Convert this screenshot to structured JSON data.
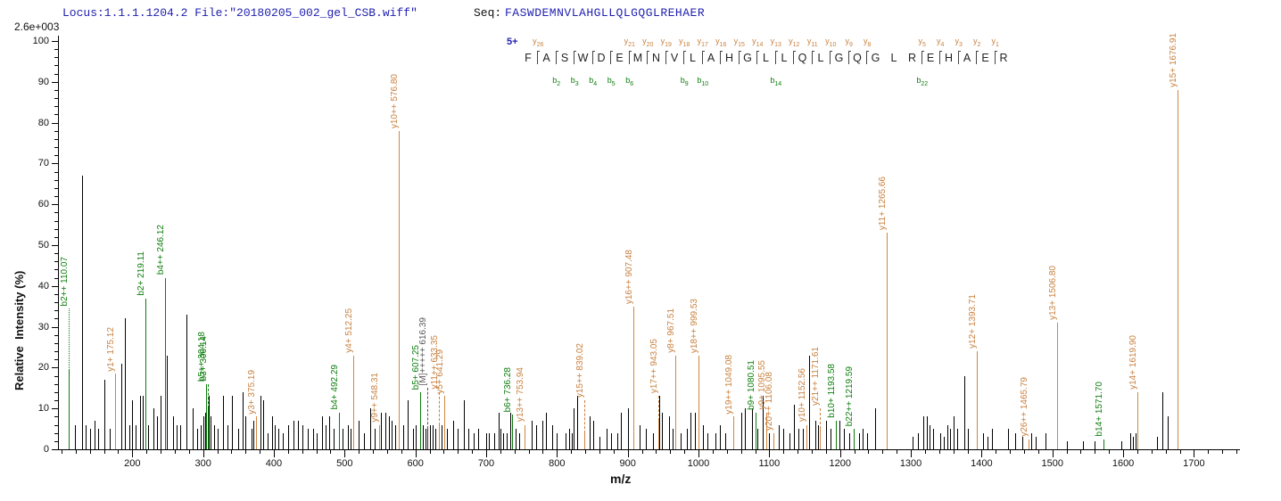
{
  "header": {
    "locus_file": "Locus:1.1.1.1204.2 File:\"20180205_002_gel_CSB.wiff\"",
    "seq_label": "Seq:",
    "sequence": "FASWDEMNVLAHGLLQLGQGLREHAER"
  },
  "axis_top_label": "2.6e+003",
  "colors": {
    "y_ion": "#c8803f",
    "y_ion_bar": "#d0863f",
    "b_ion": "#0d7d0d",
    "b_ion_bar": "#0d7d0d",
    "precursor": "#555555",
    "precursor_bar": "#333333",
    "peak_black": "#000000",
    "header_blue": "#2121b2",
    "charge_blue": "#2121b2"
  },
  "chart_data": {
    "type": "bar",
    "subtype": "ms2-centroid-spectrum",
    "title": "",
    "xlabel": "m/z",
    "ylabel": "Relative  Intensity (%)",
    "xlim": [
      95,
      1765
    ],
    "ylim": [
      0,
      100
    ],
    "x_major_tick_step": 100,
    "x_minor_tick_step": 20,
    "x_major_ticks": [
      200,
      300,
      400,
      500,
      600,
      700,
      800,
      900,
      1000,
      1100,
      1200,
      1300,
      1400,
      1500,
      1600,
      1700
    ],
    "y_major_tick_step": 10,
    "y_minor_tick_step": 2,
    "y_major_ticks": [
      0,
      10,
      20,
      30,
      40,
      50,
      60,
      70,
      80,
      90,
      100
    ],
    "grid": false,
    "max_intensity_counts": "2.6e+003",
    "precursor": {
      "charge": "5+",
      "label": "[M]+++++ 616.39"
    },
    "sequence": "FASWDEMNVLAHGLLQLGQGLREHAER",
    "ladder": {
      "y_ions": [
        {
          "after": 1,
          "n": 26
        },
        {
          "after": 6,
          "n": 21
        },
        {
          "after": 7,
          "n": 20
        },
        {
          "after": 8,
          "n": 19
        },
        {
          "after": 9,
          "n": 18
        },
        {
          "after": 10,
          "n": 17
        },
        {
          "after": 11,
          "n": 16
        },
        {
          "after": 12,
          "n": 15
        },
        {
          "after": 13,
          "n": 14
        },
        {
          "after": 14,
          "n": 13
        },
        {
          "after": 15,
          "n": 12
        },
        {
          "after": 16,
          "n": 11
        },
        {
          "after": 17,
          "n": 10
        },
        {
          "after": 18,
          "n": 9
        },
        {
          "after": 19,
          "n": 8
        },
        {
          "after": 22,
          "n": 5
        },
        {
          "after": 23,
          "n": 4
        },
        {
          "after": 24,
          "n": 3
        },
        {
          "after": 25,
          "n": 2
        },
        {
          "after": 26,
          "n": 1
        }
      ],
      "b_ions": [
        {
          "after": 2,
          "n": 2
        },
        {
          "after": 3,
          "n": 3
        },
        {
          "after": 4,
          "n": 4
        },
        {
          "after": 5,
          "n": 5
        },
        {
          "after": 6,
          "n": 6
        },
        {
          "after": 9,
          "n": 9
        },
        {
          "after": 10,
          "n": 10
        },
        {
          "after": 14,
          "n": 14
        },
        {
          "after": 22,
          "n": 22
        }
      ]
    },
    "annotated_peaks": [
      {
        "mz": 110.07,
        "pct": 19.5,
        "ion": "b",
        "label": "b2++ 110.07",
        "raise": 15,
        "dash": "dotted"
      },
      {
        "mz": 175.12,
        "pct": 18.5,
        "ion": "y",
        "label": "y1+ 175.12"
      },
      {
        "mz": 219.11,
        "pct": 37,
        "ion": "b",
        "label": "b2+ 219.11"
      },
      {
        "mz": 246.12,
        "pct": 42,
        "ion": "b",
        "label": "b4++ 246.12"
      },
      {
        "mz": 304.18,
        "pct": 16,
        "ion": "b",
        "label": "b5++ 304.18"
      },
      {
        "mz": 306.14,
        "pct": 10,
        "ion": "b",
        "label": "b3+ 306.14",
        "raise": 6
      },
      {
        "mz": 375.19,
        "pct": 8,
        "ion": "y",
        "label": "y3+ 375.19"
      },
      {
        "mz": 492.29,
        "pct": 9,
        "ion": "b",
        "label": "b4+ 492.29"
      },
      {
        "mz": 512.25,
        "pct": 23,
        "ion": "y",
        "label": "y4+ 512.25"
      },
      {
        "mz": 548.31,
        "pct": 6,
        "ion": "y",
        "label": "y9++ 548.31"
      },
      {
        "mz": 576.8,
        "pct": 78,
        "ion": "y",
        "label": "y10++ 576.80"
      },
      {
        "mz": 607.25,
        "pct": 14,
        "ion": "b",
        "label": "b5+ 607.25"
      },
      {
        "mz": 616.39,
        "pct": 5,
        "ion": "M",
        "label": "[M]+++++ 616.39",
        "raise": 10,
        "dash": "dashed"
      },
      {
        "mz": 633.35,
        "pct": 6,
        "ion": "y",
        "label": "y11++ 633.35",
        "raise": 8,
        "dash": "dashed"
      },
      {
        "mz": 641.29,
        "pct": 13,
        "ion": "y",
        "label": "y5+ 641.29"
      },
      {
        "mz": 736.28,
        "pct": 8.5,
        "ion": "b",
        "label": "b6+ 736.28"
      },
      {
        "mz": 753.94,
        "pct": 6,
        "ion": "y",
        "label": "y13++ 753.94"
      },
      {
        "mz": 839.02,
        "pct": 4,
        "ion": "y",
        "label": "y15++ 839.02",
        "raise": 8,
        "dash": "dashed"
      },
      {
        "mz": 907.48,
        "pct": 35,
        "ion": "y",
        "label": "y16++ 907.48"
      },
      {
        "mz": 943.05,
        "pct": 7,
        "ion": "y",
        "label": "y17++ 943.05",
        "raise": 6,
        "dash": "dashed"
      },
      {
        "mz": 967.51,
        "pct": 23,
        "ion": "y",
        "label": "y8+ 967.51"
      },
      {
        "mz": 999.53,
        "pct": 23,
        "ion": "y",
        "label": "y18++ 999.53"
      },
      {
        "mz": 1049.08,
        "pct": 8,
        "ion": "y",
        "label": "y19++ 1049.08"
      },
      {
        "mz": 1080.51,
        "pct": 9,
        "ion": "b",
        "label": "b9+ 1080.51"
      },
      {
        "mz": 1095.55,
        "pct": 9,
        "ion": "y",
        "label": "y9+ 1095.55"
      },
      {
        "mz": 1106.08,
        "pct": 4,
        "ion": "y",
        "label": "y20++ 1106.08"
      },
      {
        "mz": 1152.56,
        "pct": 6,
        "ion": "y",
        "label": "y10+ 1152.56"
      },
      {
        "mz": 1171.61,
        "pct": 5,
        "ion": "y",
        "label": "y21++ 1171.61",
        "raise": 5,
        "dash": "dashed"
      },
      {
        "mz": 1193.58,
        "pct": 7,
        "ion": "b",
        "label": "b10+ 1193.58"
      },
      {
        "mz": 1219.59,
        "pct": 5,
        "ion": "b",
        "label": "b22++ 1219.59"
      },
      {
        "mz": 1265.66,
        "pct": 53,
        "ion": "y",
        "label": "y11+ 1265.66"
      },
      {
        "mz": 1393.71,
        "pct": 24,
        "ion": "y",
        "label": "y12+ 1393.71"
      },
      {
        "mz": 1465.79,
        "pct": 2.5,
        "ion": "y",
        "label": "y26++ 1465.79"
      },
      {
        "mz": 1506.8,
        "pct": 31,
        "ion": "y",
        "label": "y13+ 1506.80"
      },
      {
        "mz": 1571.7,
        "pct": 2.5,
        "ion": "b",
        "label": "b14+ 1571.70"
      },
      {
        "mz": 1619.9,
        "pct": 14,
        "ion": "y",
        "label": "y14+ 1619.90"
      },
      {
        "mz": 1676.91,
        "pct": 88,
        "ion": "y",
        "label": "y15+ 1676.91"
      }
    ],
    "unlabeled_peaks": [
      [
        119,
        6
      ],
      [
        129,
        67
      ],
      [
        134,
        6
      ],
      [
        141,
        5
      ],
      [
        147,
        7
      ],
      [
        152,
        5
      ],
      [
        161,
        17
      ],
      [
        168,
        5
      ],
      [
        185,
        21
      ],
      [
        190,
        32
      ],
      [
        196,
        6
      ],
      [
        199,
        12
      ],
      [
        205,
        6
      ],
      [
        211,
        13
      ],
      [
        215,
        13
      ],
      [
        222,
        6
      ],
      [
        230,
        10
      ],
      [
        235,
        8
      ],
      [
        240,
        13
      ],
      [
        249,
        23
      ],
      [
        258,
        8
      ],
      [
        262,
        6
      ],
      [
        268,
        6
      ],
      [
        277,
        33
      ],
      [
        285,
        10
      ],
      [
        291,
        5
      ],
      [
        297,
        6
      ],
      [
        300,
        8
      ],
      [
        303,
        9
      ],
      [
        308,
        13
      ],
      [
        311,
        8
      ],
      [
        316,
        6
      ],
      [
        321,
        5
      ],
      [
        328,
        13
      ],
      [
        334,
        6
      ],
      [
        341,
        13
      ],
      [
        349,
        5
      ],
      [
        356,
        14
      ],
      [
        360,
        8
      ],
      [
        368,
        5
      ],
      [
        371,
        7
      ],
      [
        381,
        13
      ],
      [
        385,
        12
      ],
      [
        391,
        4
      ],
      [
        397,
        8
      ],
      [
        401,
        6
      ],
      [
        406,
        5
      ],
      [
        412,
        4
      ],
      [
        420,
        6
      ],
      [
        428,
        7
      ],
      [
        434,
        7
      ],
      [
        440,
        6
      ],
      [
        448,
        5
      ],
      [
        455,
        5
      ],
      [
        461,
        4
      ],
      [
        468,
        8
      ],
      [
        473,
        6
      ],
      [
        478,
        8
      ],
      [
        484,
        5
      ],
      [
        497,
        5
      ],
      [
        505,
        6
      ],
      [
        509,
        5
      ],
      [
        520,
        7
      ],
      [
        527,
        4
      ],
      [
        536,
        10
      ],
      [
        542,
        5
      ],
      [
        551,
        9
      ],
      [
        557,
        9
      ],
      [
        562,
        8
      ],
      [
        566,
        7
      ],
      [
        571,
        6
      ],
      [
        583,
        6
      ],
      [
        589,
        12
      ],
      [
        596,
        5
      ],
      [
        600,
        6
      ],
      [
        611,
        6
      ],
      [
        614,
        5
      ],
      [
        620,
        6
      ],
      [
        624,
        6
      ],
      [
        628,
        5
      ],
      [
        637,
        6
      ],
      [
        645,
        5
      ],
      [
        653,
        7
      ],
      [
        660,
        5
      ],
      [
        668,
        12
      ],
      [
        675,
        5
      ],
      [
        682,
        4
      ],
      [
        689,
        5
      ],
      [
        700,
        4
      ],
      [
        704,
        4
      ],
      [
        711,
        4
      ],
      [
        717,
        9
      ],
      [
        720,
        5
      ],
      [
        724,
        4
      ],
      [
        729,
        4
      ],
      [
        734,
        9
      ],
      [
        742,
        5
      ],
      [
        747,
        4
      ],
      [
        764,
        7
      ],
      [
        770,
        6
      ],
      [
        779,
        7
      ],
      [
        785,
        9
      ],
      [
        793,
        6
      ],
      [
        800,
        4
      ],
      [
        812,
        4
      ],
      [
        817,
        5
      ],
      [
        821,
        4
      ],
      [
        824,
        10
      ],
      [
        829,
        13
      ],
      [
        846,
        8
      ],
      [
        851,
        7
      ],
      [
        860,
        3
      ],
      [
        870,
        5
      ],
      [
        877,
        4
      ],
      [
        885,
        4
      ],
      [
        890,
        9
      ],
      [
        900,
        10
      ],
      [
        917,
        6
      ],
      [
        926,
        5
      ],
      [
        936,
        4
      ],
      [
        945,
        13
      ],
      [
        948,
        9
      ],
      [
        958,
        8
      ],
      [
        963,
        5
      ],
      [
        975,
        4
      ],
      [
        983,
        5
      ],
      [
        988,
        9
      ],
      [
        995,
        9
      ],
      [
        1006,
        6
      ],
      [
        1013,
        4
      ],
      [
        1024,
        4
      ],
      [
        1030,
        6
      ],
      [
        1038,
        4
      ],
      [
        1060,
        9
      ],
      [
        1066,
        10
      ],
      [
        1075,
        10
      ],
      [
        1083,
        5
      ],
      [
        1091,
        13
      ],
      [
        1100,
        4
      ],
      [
        1113,
        6
      ],
      [
        1120,
        5
      ],
      [
        1128,
        4
      ],
      [
        1135,
        11
      ],
      [
        1141,
        5
      ],
      [
        1148,
        5
      ],
      [
        1156,
        23
      ],
      [
        1165,
        7
      ],
      [
        1169,
        6
      ],
      [
        1180,
        7
      ],
      [
        1187,
        5
      ],
      [
        1199,
        7
      ],
      [
        1206,
        5
      ],
      [
        1213,
        4
      ],
      [
        1227,
        4
      ],
      [
        1232,
        5
      ],
      [
        1238,
        4
      ],
      [
        1250,
        10
      ],
      [
        1302,
        3
      ],
      [
        1310,
        4
      ],
      [
        1318,
        8
      ],
      [
        1322,
        8
      ],
      [
        1327,
        6
      ],
      [
        1332,
        5
      ],
      [
        1341,
        4
      ],
      [
        1347,
        3
      ],
      [
        1352,
        6
      ],
      [
        1356,
        5
      ],
      [
        1361,
        8
      ],
      [
        1366,
        5
      ],
      [
        1375,
        18
      ],
      [
        1381,
        5
      ],
      [
        1402,
        4
      ],
      [
        1408,
        3
      ],
      [
        1415,
        5
      ],
      [
        1437,
        5
      ],
      [
        1447,
        4
      ],
      [
        1457,
        3
      ],
      [
        1470,
        4
      ],
      [
        1477,
        3
      ],
      [
        1490,
        4
      ],
      [
        1520,
        2
      ],
      [
        1543,
        2
      ],
      [
        1560,
        2
      ],
      [
        1597,
        2
      ],
      [
        1610,
        4
      ],
      [
        1614,
        3
      ],
      [
        1617,
        4
      ],
      [
        1648,
        3
      ],
      [
        1655,
        14
      ],
      [
        1663,
        8
      ]
    ]
  }
}
